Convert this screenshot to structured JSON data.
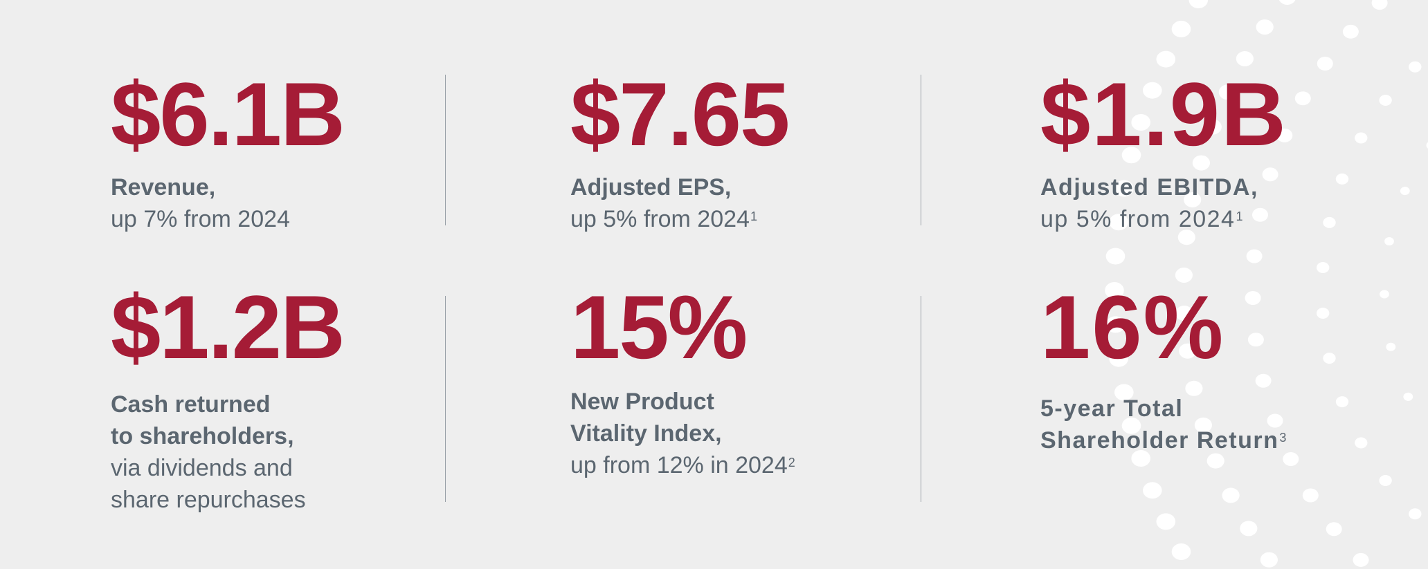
{
  "colors": {
    "accent": "#a51c36",
    "text": "#5b6670",
    "background": "#eeeeee"
  },
  "metrics": [
    {
      "value": "$6.1B",
      "label_lines": [
        "Revenue,"
      ],
      "sub_lines": [
        "up 7% from 2024"
      ],
      "footnote": ""
    },
    {
      "value": "$7.65",
      "label_lines": [
        "Adjusted EPS,"
      ],
      "sub_lines": [
        "up 5% from 2024"
      ],
      "footnote": "1"
    },
    {
      "value": "$1.9B",
      "label_lines": [
        "Adjusted EBITDA,"
      ],
      "sub_lines": [
        "up 5% from 2024"
      ],
      "footnote": "1"
    },
    {
      "value": "$1.2B",
      "label_lines": [
        "Cash returned",
        "to shareholders,"
      ],
      "sub_lines": [
        "via dividends and",
        "share repurchases"
      ],
      "footnote": ""
    },
    {
      "value": "15%",
      "label_lines": [
        "New Product",
        "Vitality Index,"
      ],
      "sub_lines": [
        "up from 12% in 2024"
      ],
      "footnote": "2"
    },
    {
      "value": "16%",
      "label_lines": [
        "5-year Total",
        "Shareholder Return"
      ],
      "sub_lines": [],
      "footnote": "3"
    }
  ]
}
